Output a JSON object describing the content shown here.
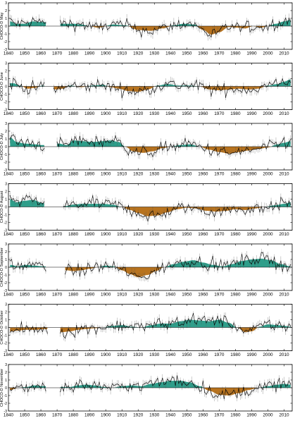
{
  "colors": {
    "positive_fill": "#2e9e8a",
    "negative_fill": "#b8731e",
    "line": "#000000",
    "frame": "#000000",
    "background": "#ffffff"
  },
  "chart_data": [
    {
      "type": "area",
      "ylabel": "CHOCO-D May",
      "xlim": [
        1840,
        2015
      ],
      "ylim": [
        -3,
        3
      ],
      "x_ticks": [
        1840,
        1850,
        1860,
        1870,
        1880,
        1890,
        1900,
        1910,
        1920,
        1930,
        1940,
        1950,
        1960,
        1970,
        1980,
        1990,
        2000,
        2010
      ],
      "y_ticks": [
        -3,
        -2,
        -1,
        0,
        1,
        2,
        3
      ],
      "gap": [
        1863,
        1872
      ],
      "smoothed_anchors": [
        [
          1841,
          0.6
        ],
        [
          1845,
          0.3
        ],
        [
          1850,
          0.3
        ],
        [
          1855,
          0.6
        ],
        [
          1862,
          0.5
        ],
        [
          1873,
          0.3
        ],
        [
          1880,
          0.3
        ],
        [
          1885,
          0.2
        ],
        [
          1890,
          0.0
        ],
        [
          1895,
          -0.2
        ],
        [
          1905,
          0.2
        ],
        [
          1912,
          0.1
        ],
        [
          1920,
          -0.5
        ],
        [
          1928,
          -0.6
        ],
        [
          1935,
          -0.3
        ],
        [
          1942,
          0.1
        ],
        [
          1948,
          0.3
        ],
        [
          1955,
          0.2
        ],
        [
          1960,
          -0.5
        ],
        [
          1965,
          -1.1
        ],
        [
          1970,
          -0.8
        ],
        [
          1976,
          -0.1
        ],
        [
          1981,
          -0.2
        ],
        [
          1986,
          -0.3
        ],
        [
          1991,
          0.0
        ],
        [
          1996,
          -0.2
        ],
        [
          2000,
          0.0
        ],
        [
          2005,
          0.3
        ],
        [
          2010,
          0.6
        ],
        [
          2014,
          0.8
        ]
      ]
    },
    {
      "type": "area",
      "ylabel": "CHOCO-D June",
      "xlim": [
        1840,
        2015
      ],
      "ylim": [
        -3,
        3
      ],
      "x_ticks": [
        1840,
        1850,
        1860,
        1870,
        1880,
        1890,
        1900,
        1910,
        1920,
        1930,
        1940,
        1950,
        1960,
        1970,
        1980,
        1990,
        2000,
        2010
      ],
      "y_ticks": [
        -3,
        -2,
        -1,
        0,
        1,
        2,
        3
      ],
      "gap": [
        1862,
        1868
      ],
      "smoothed_anchors": [
        [
          1843,
          0.4
        ],
        [
          1847,
          0.1
        ],
        [
          1852,
          -0.3
        ],
        [
          1856,
          -0.2
        ],
        [
          1861,
          0.1
        ],
        [
          1869,
          -0.4
        ],
        [
          1873,
          -0.3
        ],
        [
          1878,
          0.1
        ],
        [
          1885,
          -0.1
        ],
        [
          1892,
          0.1
        ],
        [
          1898,
          0.2
        ],
        [
          1903,
          -0.1
        ],
        [
          1908,
          -0.3
        ],
        [
          1914,
          -0.6
        ],
        [
          1920,
          -0.7
        ],
        [
          1926,
          -0.4
        ],
        [
          1932,
          0.1
        ],
        [
          1938,
          0.3
        ],
        [
          1945,
          0.1
        ],
        [
          1952,
          0.1
        ],
        [
          1958,
          0.0
        ],
        [
          1964,
          -0.4
        ],
        [
          1970,
          -0.5
        ],
        [
          1976,
          -0.4
        ],
        [
          1982,
          -0.3
        ],
        [
          1988,
          -0.4
        ],
        [
          1994,
          -0.3
        ],
        [
          2000,
          0.1
        ],
        [
          2006,
          0.3
        ],
        [
          2010,
          0.6
        ],
        [
          2014,
          0.9
        ]
      ]
    },
    {
      "type": "area",
      "ylabel": "CHOCO-D July",
      "xlim": [
        1840,
        2015
      ],
      "ylim": [
        -3,
        3
      ],
      "x_ticks": [
        1840,
        1850,
        1860,
        1870,
        1880,
        1890,
        1900,
        1910,
        1920,
        1930,
        1940,
        1950,
        1960,
        1970,
        1980,
        1990,
        2000,
        2010
      ],
      "y_ticks": [
        -3,
        -2,
        -1,
        0,
        1,
        2,
        3
      ],
      "gap": [
        1862,
        1870
      ],
      "smoothed_anchors": [
        [
          1841,
          1.2
        ],
        [
          1845,
          0.6
        ],
        [
          1850,
          0.4
        ],
        [
          1856,
          0.3
        ],
        [
          1861,
          0.2
        ],
        [
          1871,
          0.4
        ],
        [
          1876,
          0.2
        ],
        [
          1880,
          0.8
        ],
        [
          1886,
          0.7
        ],
        [
          1892,
          0.6
        ],
        [
          1898,
          0.7
        ],
        [
          1903,
          0.8
        ],
        [
          1908,
          0.6
        ],
        [
          1912,
          0.0
        ],
        [
          1917,
          -0.6
        ],
        [
          1923,
          -0.8
        ],
        [
          1929,
          -0.6
        ],
        [
          1935,
          -0.2
        ],
        [
          1940,
          0.0
        ],
        [
          1946,
          0.2
        ],
        [
          1952,
          0.3
        ],
        [
          1958,
          0.0
        ],
        [
          1964,
          -0.4
        ],
        [
          1970,
          -0.7
        ],
        [
          1976,
          -0.9
        ],
        [
          1982,
          -0.7
        ],
        [
          1988,
          -0.5
        ],
        [
          1994,
          -0.3
        ],
        [
          2000,
          -0.1
        ],
        [
          2006,
          0.3
        ],
        [
          2010,
          0.5
        ],
        [
          2014,
          0.7
        ]
      ]
    },
    {
      "type": "area",
      "ylabel": "CHOCO-D August",
      "xlim": [
        1840,
        2015
      ],
      "ylim": [
        -3,
        3
      ],
      "x_ticks": [
        1840,
        1850,
        1860,
        1870,
        1880,
        1890,
        1900,
        1910,
        1920,
        1930,
        1940,
        1950,
        1960,
        1970,
        1980,
        1990,
        2000,
        2010
      ],
      "y_ticks": [
        -3,
        -2,
        -1,
        0,
        1,
        2,
        3
      ],
      "gap": [
        1862,
        1874
      ],
      "smoothed_anchors": [
        [
          1841,
          1.0
        ],
        [
          1845,
          0.6
        ],
        [
          1850,
          0.8
        ],
        [
          1855,
          0.9
        ],
        [
          1861,
          0.5
        ],
        [
          1875,
          0.1
        ],
        [
          1880,
          0.3
        ],
        [
          1886,
          0.4
        ],
        [
          1892,
          0.4
        ],
        [
          1898,
          0.4
        ],
        [
          1904,
          0.3
        ],
        [
          1910,
          0.0
        ],
        [
          1915,
          -0.4
        ],
        [
          1920,
          -0.8
        ],
        [
          1926,
          -1.2
        ],
        [
          1932,
          -1.1
        ],
        [
          1938,
          -0.7
        ],
        [
          1944,
          -0.3
        ],
        [
          1950,
          -0.1
        ],
        [
          1956,
          -0.2
        ],
        [
          1962,
          -0.5
        ],
        [
          1968,
          -0.6
        ],
        [
          1974,
          -0.5
        ],
        [
          1980,
          -0.3
        ],
        [
          1986,
          -0.4
        ],
        [
          1992,
          -0.2
        ],
        [
          1998,
          0.0
        ],
        [
          2004,
          0.2
        ],
        [
          2010,
          0.4
        ],
        [
          2014,
          0.6
        ]
      ]
    },
    {
      "type": "area",
      "ylabel": "CHOCO-D September",
      "xlim": [
        1840,
        2015
      ],
      "ylim": [
        -3,
        3
      ],
      "x_ticks": [
        1840,
        1850,
        1860,
        1870,
        1880,
        1890,
        1900,
        1910,
        1920,
        1930,
        1940,
        1950,
        1960,
        1970,
        1980,
        1990,
        2000,
        2010
      ],
      "y_ticks": [
        -3,
        -2,
        -1,
        0,
        1,
        2,
        3
      ],
      "gap": [
        1863,
        1875
      ],
      "smoothed_anchors": [
        [
          1841,
          0.3
        ],
        [
          1846,
          0.1
        ],
        [
          1851,
          0.3
        ],
        [
          1856,
          0.2
        ],
        [
          1862,
          0.1
        ],
        [
          1876,
          -0.4
        ],
        [
          1880,
          -0.5
        ],
        [
          1885,
          -0.4
        ],
        [
          1890,
          -0.2
        ],
        [
          1895,
          0.0
        ],
        [
          1900,
          0.2
        ],
        [
          1905,
          0.1
        ],
        [
          1910,
          -0.4
        ],
        [
          1915,
          -0.9
        ],
        [
          1920,
          -1.3
        ],
        [
          1926,
          -1.0
        ],
        [
          1931,
          -0.5
        ],
        [
          1936,
          0.0
        ],
        [
          1942,
          0.4
        ],
        [
          1948,
          0.7
        ],
        [
          1954,
          0.9
        ],
        [
          1960,
          0.6
        ],
        [
          1966,
          0.3
        ],
        [
          1972,
          0.1
        ],
        [
          1978,
          0.4
        ],
        [
          1984,
          0.8
        ],
        [
          1990,
          1.0
        ],
        [
          1996,
          1.1
        ],
        [
          2002,
          0.9
        ],
        [
          2008,
          0.4
        ],
        [
          2014,
          0.1
        ]
      ]
    },
    {
      "type": "area",
      "ylabel": "CHOCO-D October",
      "xlim": [
        1840,
        2015
      ],
      "ylim": [
        -3,
        3
      ],
      "x_ticks": [
        1840,
        1850,
        1860,
        1870,
        1880,
        1890,
        1900,
        1910,
        1920,
        1930,
        1940,
        1950,
        1960,
        1970,
        1980,
        1990,
        2000,
        2010
      ],
      "y_ticks": [
        -3,
        -2,
        -1,
        0,
        1,
        2,
        3
      ],
      "gap": [
        1864,
        1872
      ],
      "smoothed_anchors": [
        [
          1841,
          -0.5
        ],
        [
          1846,
          -0.4
        ],
        [
          1851,
          -0.3
        ],
        [
          1856,
          -0.3
        ],
        [
          1863,
          -0.2
        ],
        [
          1873,
          -0.6
        ],
        [
          1878,
          -0.5
        ],
        [
          1883,
          -0.3
        ],
        [
          1888,
          -0.2
        ],
        [
          1893,
          -0.1
        ],
        [
          1898,
          0.0
        ],
        [
          1904,
          0.2
        ],
        [
          1910,
          0.3
        ],
        [
          1916,
          0.1
        ],
        [
          1922,
          0.0
        ],
        [
          1928,
          0.3
        ],
        [
          1934,
          0.5
        ],
        [
          1940,
          0.5
        ],
        [
          1946,
          0.8
        ],
        [
          1952,
          1.0
        ],
        [
          1958,
          0.9
        ],
        [
          1964,
          0.8
        ],
        [
          1970,
          1.0
        ],
        [
          1976,
          0.6
        ],
        [
          1981,
          0.0
        ],
        [
          1986,
          -0.6
        ],
        [
          1990,
          -0.5
        ],
        [
          1995,
          0.1
        ],
        [
          2000,
          0.4
        ],
        [
          2006,
          0.3
        ],
        [
          2010,
          0.2
        ],
        [
          2014,
          0.1
        ]
      ]
    },
    {
      "type": "area",
      "ylabel": "CHOCO-D November",
      "xlim": [
        1840,
        2015
      ],
      "ylim": [
        -3,
        3
      ],
      "x_ticks": [
        1840,
        1850,
        1860,
        1870,
        1880,
        1890,
        1900,
        1910,
        1920,
        1930,
        1940,
        1950,
        1960,
        1970,
        1980,
        1990,
        2000,
        2010
      ],
      "y_ticks": [
        -3,
        -2,
        -1,
        0,
        1,
        2,
        3
      ],
      "gap": [
        1863,
        1872
      ],
      "smoothed_anchors": [
        [
          1841,
          -0.3
        ],
        [
          1846,
          0.0
        ],
        [
          1851,
          0.1
        ],
        [
          1856,
          0.3
        ],
        [
          1862,
          0.2
        ],
        [
          1873,
          0.1
        ],
        [
          1878,
          0.1
        ],
        [
          1883,
          0.3
        ],
        [
          1888,
          0.4
        ],
        [
          1893,
          0.3
        ],
        [
          1899,
          0.1
        ],
        [
          1904,
          0.0
        ],
        [
          1910,
          0.2
        ],
        [
          1916,
          0.3
        ],
        [
          1922,
          0.2
        ],
        [
          1928,
          0.5
        ],
        [
          1934,
          0.7
        ],
        [
          1940,
          0.9
        ],
        [
          1946,
          0.9
        ],
        [
          1952,
          0.7
        ],
        [
          1958,
          0.2
        ],
        [
          1964,
          -0.4
        ],
        [
          1970,
          -0.9
        ],
        [
          1976,
          -1.0
        ],
        [
          1982,
          -0.7
        ],
        [
          1988,
          -0.3
        ],
        [
          1994,
          0.0
        ],
        [
          2000,
          0.2
        ],
        [
          2006,
          0.4
        ],
        [
          2010,
          0.5
        ],
        [
          2014,
          0.4
        ]
      ]
    }
  ]
}
